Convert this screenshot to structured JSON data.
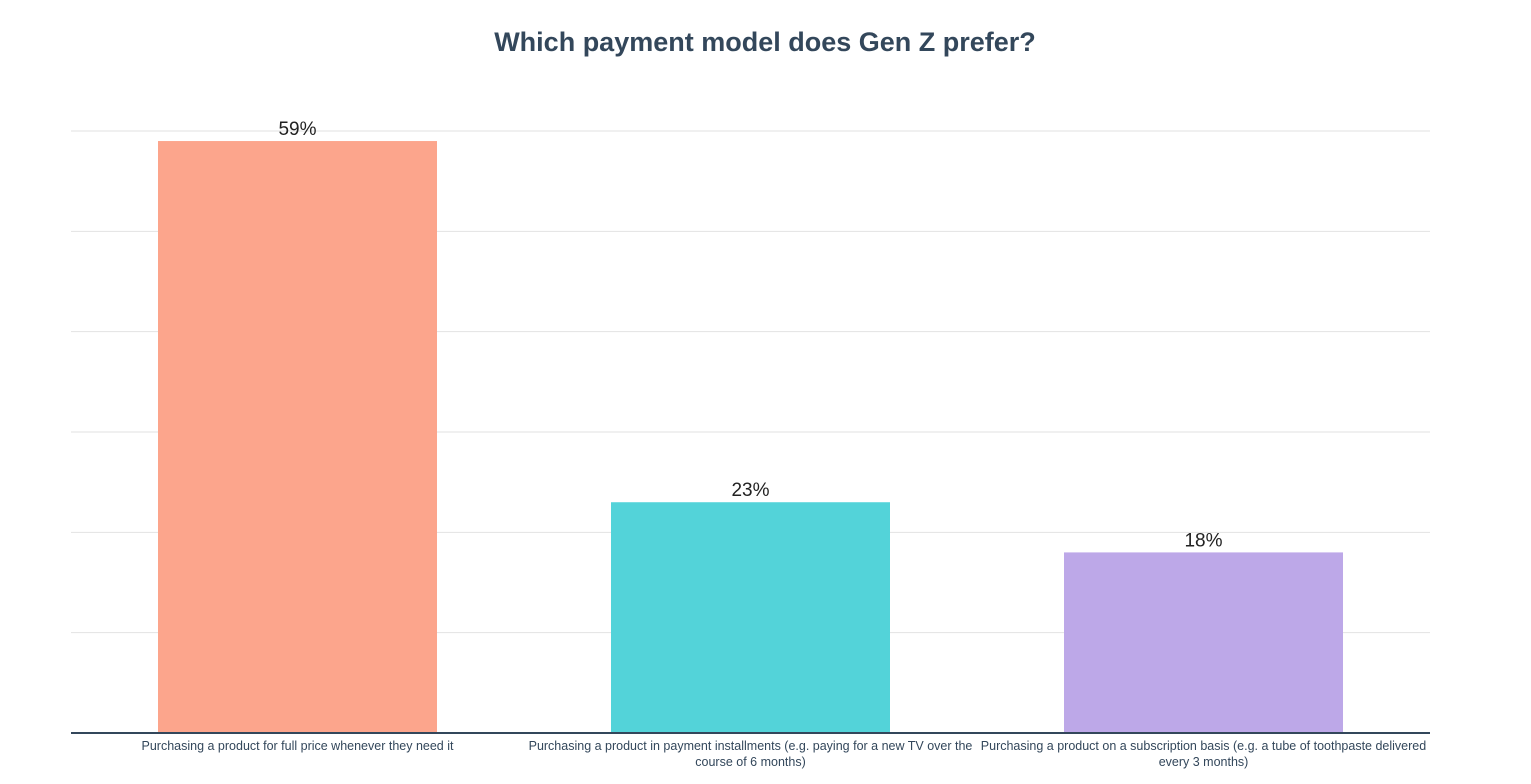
{
  "chart_data": {
    "type": "bar",
    "title": "Which payment model does Gen Z prefer?",
    "categories": [
      "Purchasing a product for full price whenever they need it",
      "Purchasing a product in payment installments (e.g. paying for a new TV over the course of 6 months)",
      "Purchasing a product on a subscription basis (e.g. a tube of toothpaste delivered every 3 months)"
    ],
    "values": [
      59,
      23,
      18
    ],
    "value_labels": [
      "59%",
      "23%",
      "18%"
    ],
    "colors": [
      "#fca58c",
      "#53d3d9",
      "#bda8e8"
    ],
    "ylim": [
      0,
      60
    ],
    "yticks": [
      0,
      10,
      20,
      30,
      40,
      50,
      60
    ],
    "grid": true
  }
}
